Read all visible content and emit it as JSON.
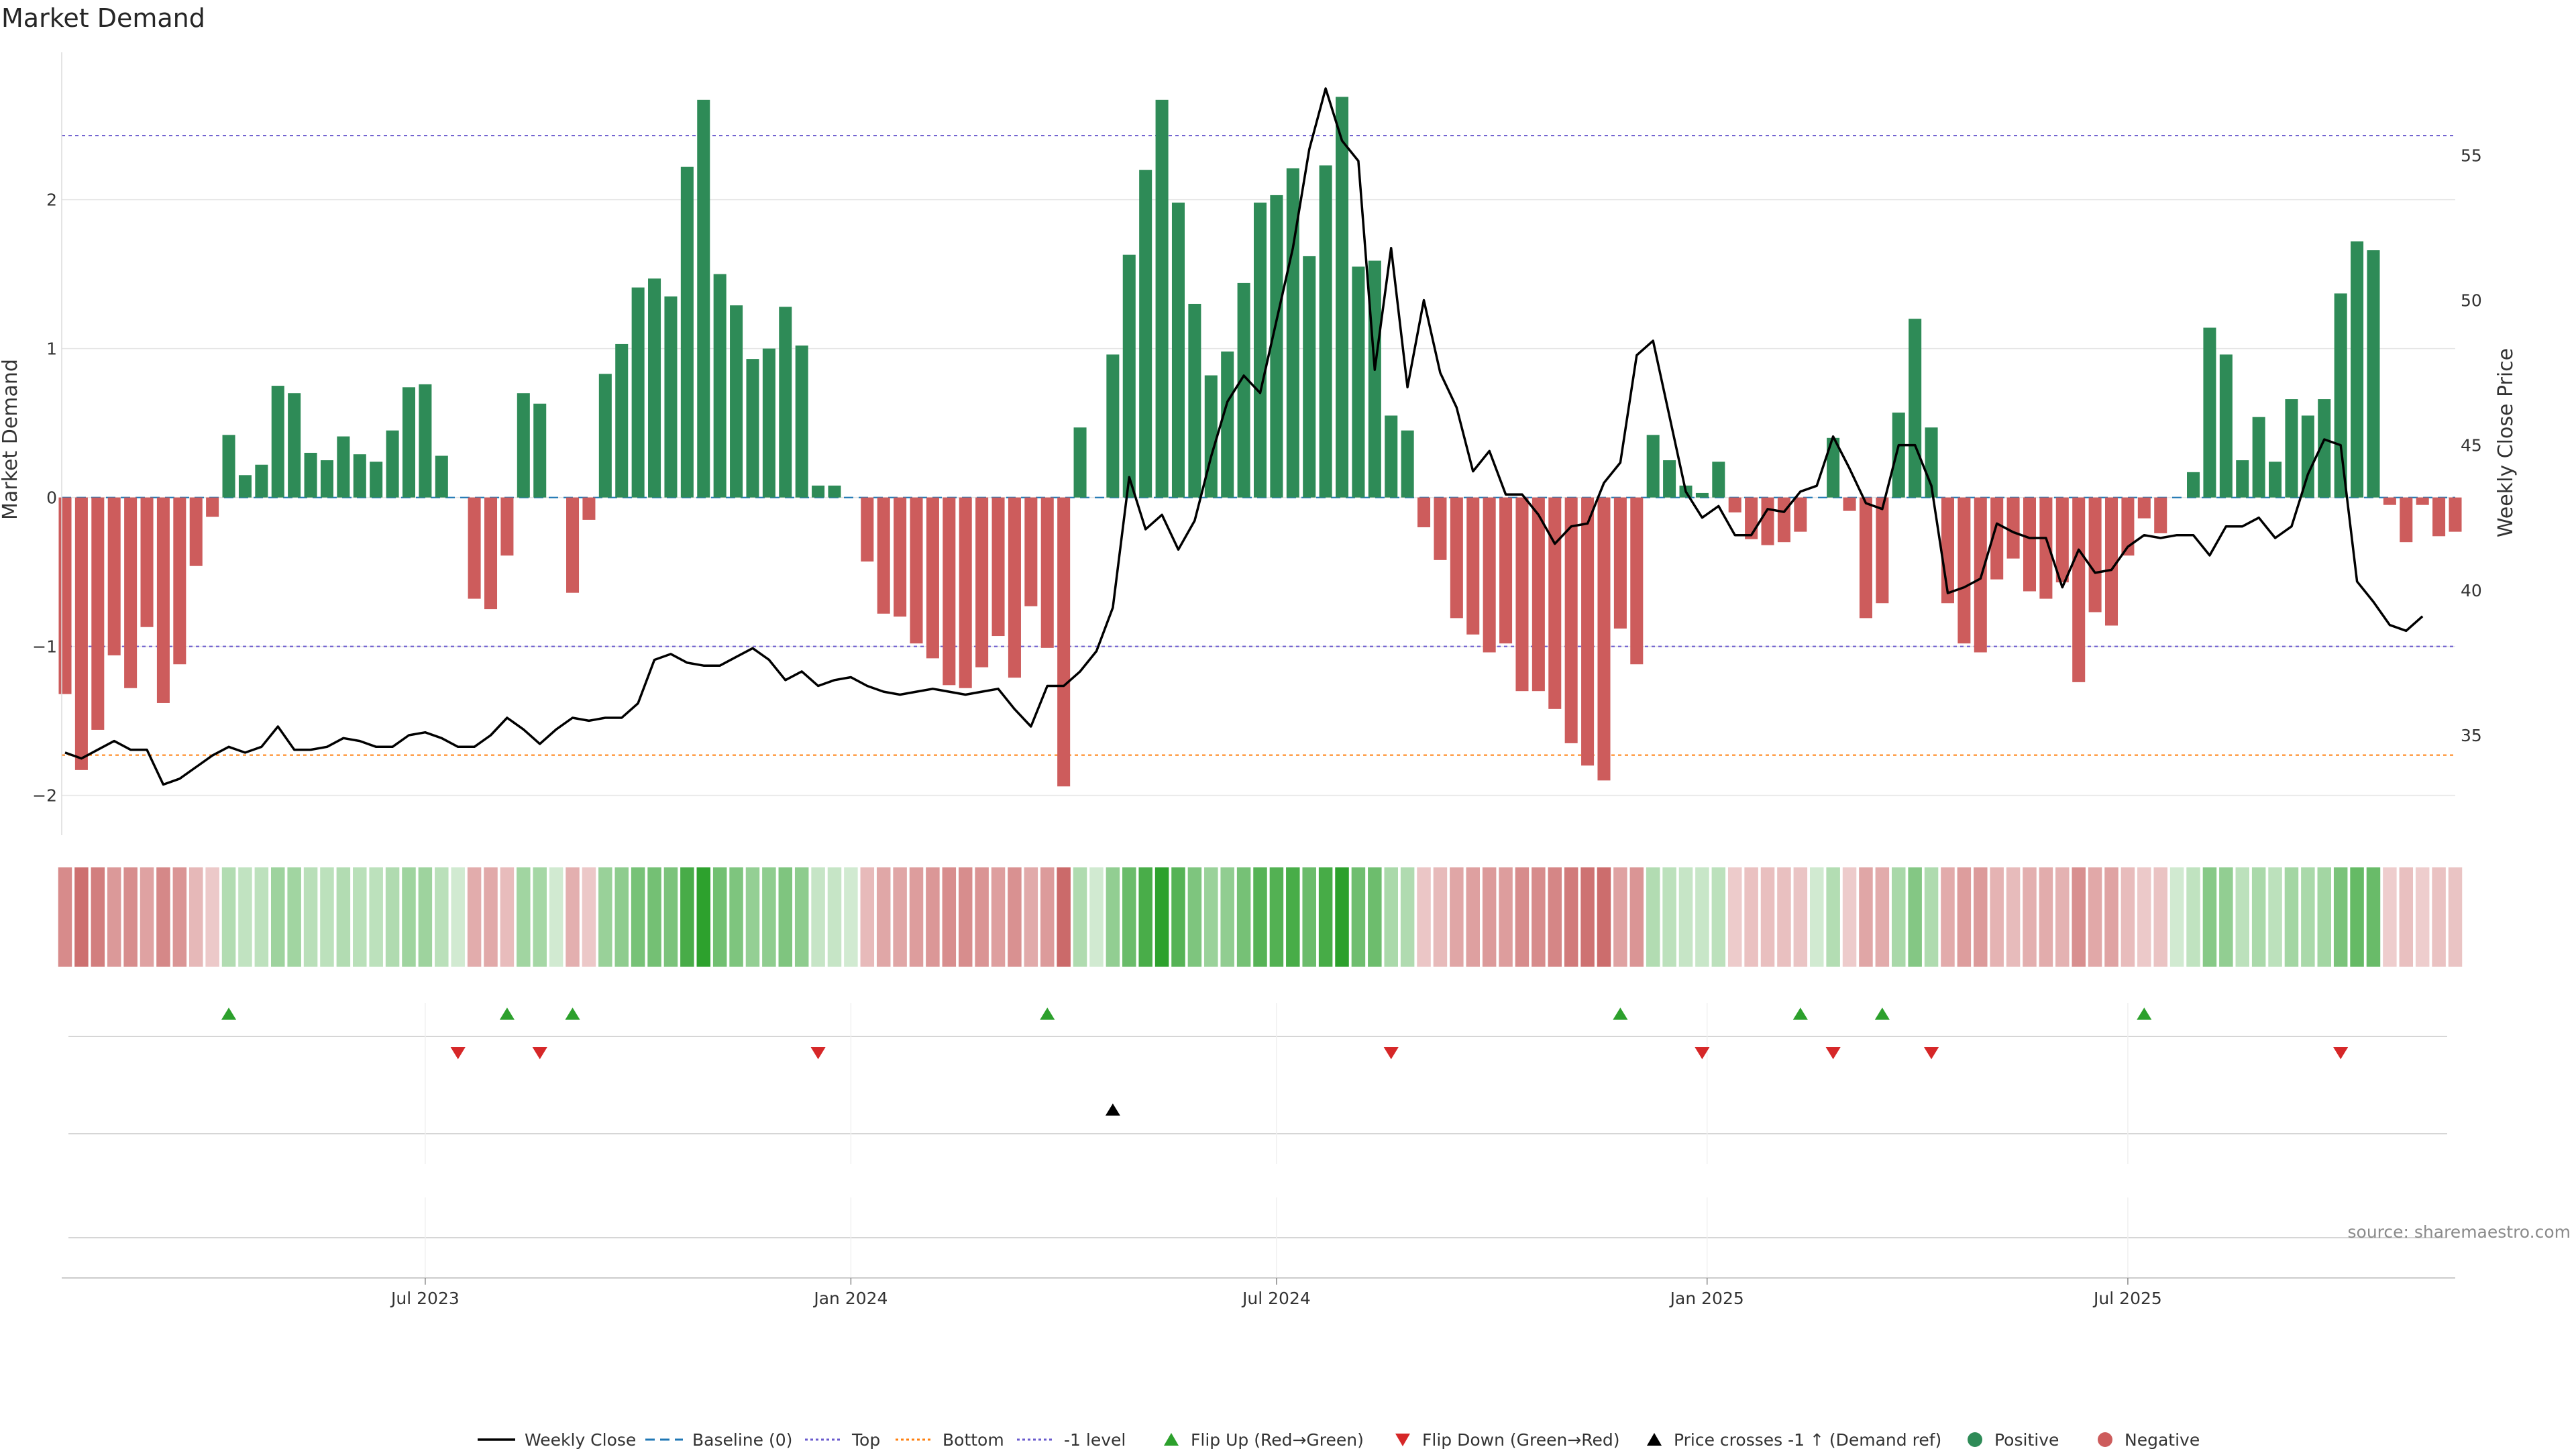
{
  "title": "Market Demand",
  "source": "source: sharemaestro.com",
  "colors": {
    "positive": "#2e8b57",
    "negative": "#cd5c5c",
    "flip_up": "#2ca02c",
    "flip_down": "#d62728",
    "price": "#000000",
    "baseline": "#1f77b4",
    "top": "#6a5acd",
    "bottom": "#ff7f0e",
    "level": "#6a5acd",
    "grid": "#e6e6e6",
    "strip_neutral": "#f7f7f7"
  },
  "chart_data": {
    "type": "bar",
    "series": [
      {
        "name": "Market Demand",
        "axis": "left",
        "values": [
          -1.32,
          -1.83,
          -1.56,
          -1.06,
          -1.28,
          -0.87,
          -1.38,
          -1.12,
          -0.46,
          -0.13,
          0.42,
          0.15,
          0.22,
          0.75,
          0.7,
          0.3,
          0.25,
          0.41,
          0.29,
          0.24,
          0.45,
          0.74,
          0.76,
          0.28,
          0.0,
          -0.68,
          -0.75,
          -0.39,
          0.7,
          0.63,
          0.0,
          -0.64,
          -0.15,
          0.83,
          1.03,
          1.41,
          1.47,
          1.35,
          2.22,
          2.67,
          1.5,
          1.29,
          0.93,
          1.0,
          1.28,
          1.02,
          0.08,
          0.08,
          0.0,
          -0.43,
          -0.78,
          -0.8,
          -0.98,
          -1.08,
          -1.26,
          -1.28,
          -1.14,
          -0.93,
          -1.21,
          -0.73,
          -1.01,
          -1.94,
          0.47,
          0.0,
          0.96,
          1.63,
          2.2,
          2.67,
          1.98,
          1.3,
          0.82,
          0.98,
          1.44,
          1.98,
          2.03,
          2.21,
          1.62,
          2.23,
          2.69,
          1.55,
          1.59,
          0.55,
          0.45,
          -0.2,
          -0.42,
          -0.81,
          -0.92,
          -1.04,
          -0.98,
          -1.3,
          -1.3,
          -1.42,
          -1.65,
          -1.8,
          -1.9,
          -0.88,
          -1.12,
          0.42,
          0.25,
          0.08,
          0.03,
          0.24,
          -0.1,
          -0.28,
          -0.32,
          -0.3,
          -0.23,
          0.0,
          0.4,
          -0.09,
          -0.81,
          -0.71,
          0.57,
          1.2,
          0.47,
          -0.71,
          -0.98,
          -1.04,
          -0.55,
          -0.41,
          -0.63,
          -0.68,
          -0.57,
          -1.24,
          -0.77,
          -0.86,
          -0.39,
          -0.14,
          -0.24,
          0.0,
          0.17,
          1.14,
          0.96,
          0.25,
          0.54,
          0.24,
          0.66,
          0.55,
          0.66,
          1.37,
          1.72,
          1.66,
          -0.05,
          -0.3,
          -0.05,
          -0.26,
          -0.23
        ]
      },
      {
        "name": "Weekly Close",
        "axis": "right",
        "type": "line",
        "values": [
          34.4,
          34.2,
          34.5,
          34.8,
          34.5,
          34.5,
          33.3,
          33.5,
          33.9,
          34.3,
          34.6,
          34.4,
          34.6,
          35.3,
          34.5,
          34.5,
          34.6,
          34.9,
          34.8,
          34.6,
          34.6,
          35.0,
          35.1,
          34.9,
          34.6,
          34.6,
          35.0,
          35.6,
          35.2,
          34.7,
          35.2,
          35.6,
          35.5,
          35.6,
          35.6,
          36.1,
          37.6,
          37.8,
          37.5,
          37.4,
          37.4,
          37.7,
          38.0,
          37.6,
          36.9,
          37.2,
          36.7,
          36.9,
          37.0,
          36.7,
          36.5,
          36.4,
          36.5,
          36.6,
          36.5,
          36.4,
          36.5,
          36.6,
          35.9,
          35.3,
          36.7,
          36.7,
          37.2,
          37.9,
          39.4,
          43.9,
          42.1,
          42.6,
          41.4,
          42.4,
          44.6,
          46.5,
          47.4,
          46.8,
          49.3,
          51.8,
          55.2,
          57.3,
          55.5,
          54.8,
          47.6,
          51.8,
          47.0,
          50.0,
          47.5,
          46.3,
          44.1,
          44.8,
          43.3,
          43.3,
          42.6,
          41.6,
          42.2,
          42.3,
          43.7,
          44.4,
          48.1,
          48.6,
          46.0,
          43.4,
          42.5,
          42.9,
          41.9,
          41.9,
          42.8,
          42.7,
          43.4,
          43.6,
          45.3,
          44.2,
          43.0,
          42.8,
          45.0,
          45.0,
          43.6,
          39.9,
          40.1,
          40.4,
          42.3,
          42.0,
          41.8,
          41.8,
          40.1,
          41.4,
          40.6,
          40.7,
          41.5,
          41.9,
          41.8,
          41.9,
          41.9,
          41.2,
          42.2,
          42.2,
          42.5,
          41.8,
          42.2,
          44.0,
          45.2,
          45.0,
          40.3,
          39.6,
          38.8,
          38.6,
          39.1
        ]
      }
    ],
    "x_tick_labels": [
      "Jul 2023",
      "Jan 2024",
      "Jul 2024",
      "Jan 2025",
      "Jul 2025"
    ],
    "x_tick_positions": [
      22,
      48,
      74,
      100.3,
      126
    ],
    "y_left": {
      "label": "Market Demand",
      "ticks": [
        -2,
        -1,
        0,
        1,
        2
      ],
      "range": [
        -2.2,
        2.98
      ]
    },
    "y_right": {
      "label": "Weekly Close Price",
      "ticks": [
        35,
        40,
        45,
        50,
        55
      ],
      "range": [
        31.9,
        58.5
      ]
    },
    "reference_lines": [
      {
        "name": "Baseline (0)",
        "value": 0,
        "axis": "left",
        "style": "dashed",
        "color_key": "baseline"
      },
      {
        "name": "Top",
        "value": 2.43,
        "axis": "left",
        "style": "dotted",
        "color_key": "top"
      },
      {
        "name": "Bottom",
        "value": -1.73,
        "axis": "left",
        "style": "dotted",
        "color_key": "bottom"
      },
      {
        "name": "-1 level",
        "value": -1,
        "axis": "left",
        "style": "dotted",
        "color_key": "level"
      }
    ],
    "flip_up_indices": [
      10,
      27,
      31,
      60,
      95,
      106,
      111,
      127
    ],
    "flip_down_indices": [
      24,
      29,
      46,
      81,
      100,
      108,
      114,
      139
    ],
    "price_cross_indices": [
      64
    ],
    "legend": {
      "position": "bottom-center",
      "entries": [
        {
          "label": "Weekly Close",
          "marker": "line",
          "color_key": "price"
        },
        {
          "label": "Baseline (0)",
          "marker": "dashed",
          "color_key": "baseline"
        },
        {
          "label": "Top",
          "marker": "dotted",
          "color_key": "top"
        },
        {
          "label": "Bottom",
          "marker": "dotted",
          "color_key": "bottom"
        },
        {
          "label": "-1 level",
          "marker": "dotted",
          "color_key": "level"
        },
        {
          "label": "Flip Up (Red→Green)",
          "marker": "triangle-up",
          "color_key": "flip_up"
        },
        {
          "label": "Flip Down (Green→Red)",
          "marker": "triangle-down",
          "color_key": "flip_down"
        },
        {
          "label": "Price crosses -1 ↑ (Demand ref)",
          "marker": "triangle-up",
          "color_key": "price"
        },
        {
          "label": "Positive",
          "marker": "circle",
          "color_key": "positive"
        },
        {
          "label": "Negative",
          "marker": "circle",
          "color_key": "negative"
        }
      ]
    }
  }
}
